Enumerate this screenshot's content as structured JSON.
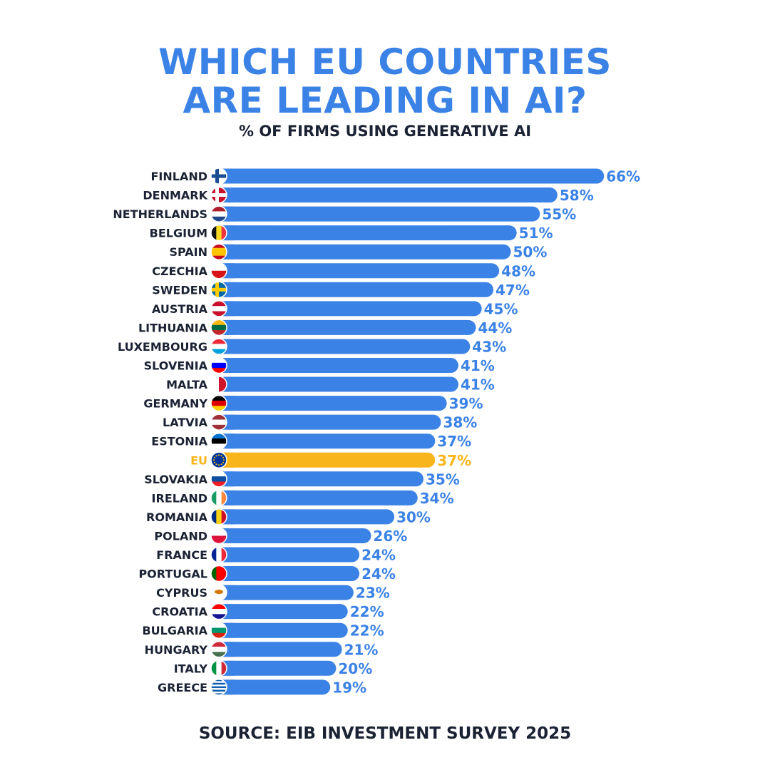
{
  "title_line1": "WHICH EU COUNTRIES",
  "title_line2": "ARE LEADING IN AI?",
  "subtitle": "% OF FIRMS USING GENERATIVE AI",
  "source": "SOURCE: EIB INVESTMENT SURVEY 2025",
  "colors": {
    "bar": "#3b82e6",
    "highlight": "#f8b51c",
    "label": "#1a2233"
  },
  "chart_data": {
    "type": "bar",
    "orientation": "horizontal",
    "title": "WHICH EU COUNTRIES ARE LEADING IN AI?",
    "subtitle": "% OF FIRMS USING GENERATIVE AI",
    "unit": "%",
    "xlim": [
      0,
      66
    ],
    "grid": false,
    "highlight": "EU",
    "categories": [
      "FINLAND",
      "DENMARK",
      "NETHERLANDS",
      "BELGIUM",
      "SPAIN",
      "CZECHIA",
      "SWEDEN",
      "AUSTRIA",
      "LITHUANIA",
      "LUXEMBOURG",
      "SLOVENIA",
      "MALTA",
      "GERMANY",
      "LATVIA",
      "ESTONIA",
      "EU",
      "SLOVAKIA",
      "IRELAND",
      "ROMANIA",
      "POLAND",
      "FRANCE",
      "PORTUGAL",
      "CYPRUS",
      "CROATIA",
      "BULGARIA",
      "HUNGARY",
      "ITALY",
      "GREECE"
    ],
    "values": [
      66,
      58,
      55,
      51,
      50,
      48,
      47,
      45,
      44,
      43,
      41,
      41,
      39,
      38,
      37,
      37,
      35,
      34,
      30,
      26,
      24,
      24,
      23,
      22,
      22,
      21,
      20,
      19
    ],
    "data_labels": [
      "66%",
      "58%",
      "55%",
      "51%",
      "50%",
      "48%",
      "47%",
      "45%",
      "44%",
      "43%",
      "41%",
      "41%",
      "39%",
      "38%",
      "37%",
      "37%",
      "35%",
      "34%",
      "30%",
      "26%",
      "24%",
      "24%",
      "23%",
      "22%",
      "22%",
      "21%",
      "20%",
      "19%"
    ],
    "flags": [
      {
        "dir": "cross",
        "c": [
          "#ffffff",
          "#1a4d8f"
        ]
      },
      {
        "dir": "cross",
        "c": [
          "#c8102e",
          "#ffffff"
        ]
      },
      {
        "dir": "h",
        "c": [
          "#ae1c28",
          "#ffffff",
          "#21468b"
        ]
      },
      {
        "dir": "v",
        "c": [
          "#111111",
          "#fdda24",
          "#ef3340"
        ]
      },
      {
        "dir": "h",
        "c": [
          "#c60b1e",
          "#ffc400",
          "#ffc400",
          "#c60b1e"
        ]
      },
      {
        "dir": "h",
        "c": [
          "#ffffff",
          "#d7141a"
        ]
      },
      {
        "dir": "cross",
        "c": [
          "#006aa7",
          "#fecc00"
        ]
      },
      {
        "dir": "h",
        "c": [
          "#c8102e",
          "#ffffff",
          "#c8102e"
        ]
      },
      {
        "dir": "h",
        "c": [
          "#fdb913",
          "#006a44",
          "#c1272d"
        ]
      },
      {
        "dir": "h",
        "c": [
          "#ed2939",
          "#ffffff",
          "#00a1de"
        ]
      },
      {
        "dir": "h",
        "c": [
          "#ffffff",
          "#0000ff",
          "#ff0000"
        ]
      },
      {
        "dir": "v",
        "c": [
          "#ffffff",
          "#cf142b"
        ]
      },
      {
        "dir": "h",
        "c": [
          "#000000",
          "#dd0000",
          "#ffce00"
        ]
      },
      {
        "dir": "h",
        "c": [
          "#9e3039",
          "#ffffff",
          "#9e3039"
        ]
      },
      {
        "dir": "h",
        "c": [
          "#0072ce",
          "#000000",
          "#ffffff"
        ]
      },
      {
        "dir": "h",
        "c": [
          "#003399"
        ]
      },
      {
        "dir": "h",
        "c": [
          "#ffffff",
          "#0b4ea2",
          "#ee1c25"
        ]
      },
      {
        "dir": "v",
        "c": [
          "#169b62",
          "#ffffff",
          "#ff883e"
        ]
      },
      {
        "dir": "v",
        "c": [
          "#002b7f",
          "#fcd116",
          "#ce1126"
        ]
      },
      {
        "dir": "h",
        "c": [
          "#ffffff",
          "#dc143c"
        ]
      },
      {
        "dir": "v",
        "c": [
          "#002395",
          "#ffffff",
          "#ed2939"
        ]
      },
      {
        "dir": "v",
        "c": [
          "#006600",
          "#ff0000",
          "#ff0000"
        ]
      },
      {
        "dir": "h",
        "c": [
          "#ffffff"
        ]
      },
      {
        "dir": "h",
        "c": [
          "#ff0000",
          "#ffffff",
          "#171796"
        ]
      },
      {
        "dir": "h",
        "c": [
          "#ffffff",
          "#00966e",
          "#d62612"
        ]
      },
      {
        "dir": "h",
        "c": [
          "#ce2939",
          "#ffffff",
          "#477050"
        ]
      },
      {
        "dir": "v",
        "c": [
          "#009246",
          "#ffffff",
          "#ce2b37"
        ]
      },
      {
        "dir": "h",
        "c": [
          "#0d5eaf",
          "#ffffff",
          "#0d5eaf",
          "#ffffff",
          "#0d5eaf",
          "#ffffff",
          "#0d5eaf",
          "#ffffff",
          "#0d5eaf"
        ]
      }
    ]
  }
}
